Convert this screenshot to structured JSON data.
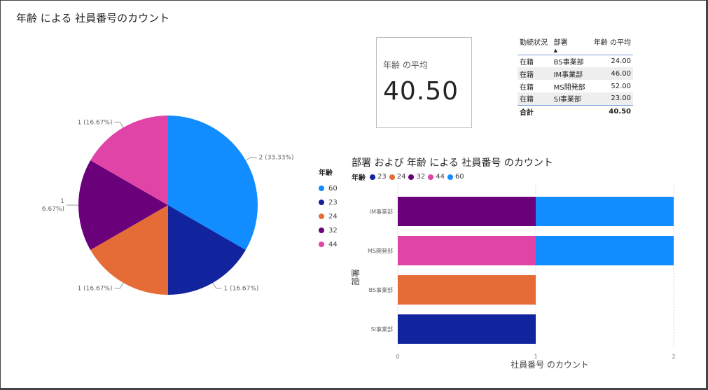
{
  "pie": {
    "title": "年齢 による 社員番号のカウント",
    "legend_title": "年齢"
  },
  "card": {
    "label": "年齢 の平均",
    "value": "40.50"
  },
  "table": {
    "headers": [
      "勤続状況",
      "部署",
      "年齢 の平均"
    ],
    "rows": [
      [
        "在籍",
        "BS事業部",
        "24.00"
      ],
      [
        "在籍",
        "IM事業部",
        "46.00"
      ],
      [
        "在籍",
        "MS開発部",
        "52.00"
      ],
      [
        "在籍",
        "SI事業部",
        "23.00"
      ]
    ],
    "total_label": "合計",
    "total_value": "40.50"
  },
  "bar": {
    "title": "部署 および 年齢 による 社員番号 のカウント",
    "legend_title": "年齢"
  },
  "colors": {
    "60": "#118DFF",
    "23": "#12239E",
    "24": "#E66C37",
    "32": "#6B007B",
    "44": "#E044A7"
  },
  "chart_data": [
    {
      "type": "pie",
      "title": "年齢 による 社員番号のカウント",
      "legend_title": "年齢",
      "legend_placement": "right",
      "slices": [
        {
          "name": "60",
          "value": 2,
          "label": "2 (33.33%)"
        },
        {
          "name": "23",
          "value": 1,
          "label": "1 (16.67%)"
        },
        {
          "name": "24",
          "value": 1,
          "label": "1 (16.67%)"
        },
        {
          "name": "32",
          "value": 1,
          "label": "1 (16.67%)"
        },
        {
          "name": "44",
          "value": 1,
          "label": "1 (16.67%)"
        }
      ]
    },
    {
      "type": "bar",
      "orientation": "horizontal",
      "stacked": true,
      "title": "部署 および 年齢 による 社員番号 のカウント",
      "xlabel": "社員番号 のカウント",
      "ylabel": "部署",
      "xlim": [
        0,
        2
      ],
      "xticks": [
        "0",
        "1",
        "2"
      ],
      "grid": true,
      "legend_title": "年齢",
      "legend_placement": "top-left",
      "legend": [
        "23",
        "24",
        "32",
        "44",
        "60"
      ],
      "categories": [
        "IM事業部",
        "MS開発部",
        "BS事業部",
        "SI事業部"
      ],
      "series": [
        {
          "name": "23",
          "values": [
            0,
            0,
            0,
            1
          ]
        },
        {
          "name": "24",
          "values": [
            0,
            0,
            1,
            0
          ]
        },
        {
          "name": "32",
          "values": [
            1,
            0,
            0,
            0
          ]
        },
        {
          "name": "44",
          "values": [
            0,
            1,
            0,
            0
          ]
        },
        {
          "name": "60",
          "values": [
            1,
            1,
            0,
            0
          ]
        }
      ]
    }
  ]
}
